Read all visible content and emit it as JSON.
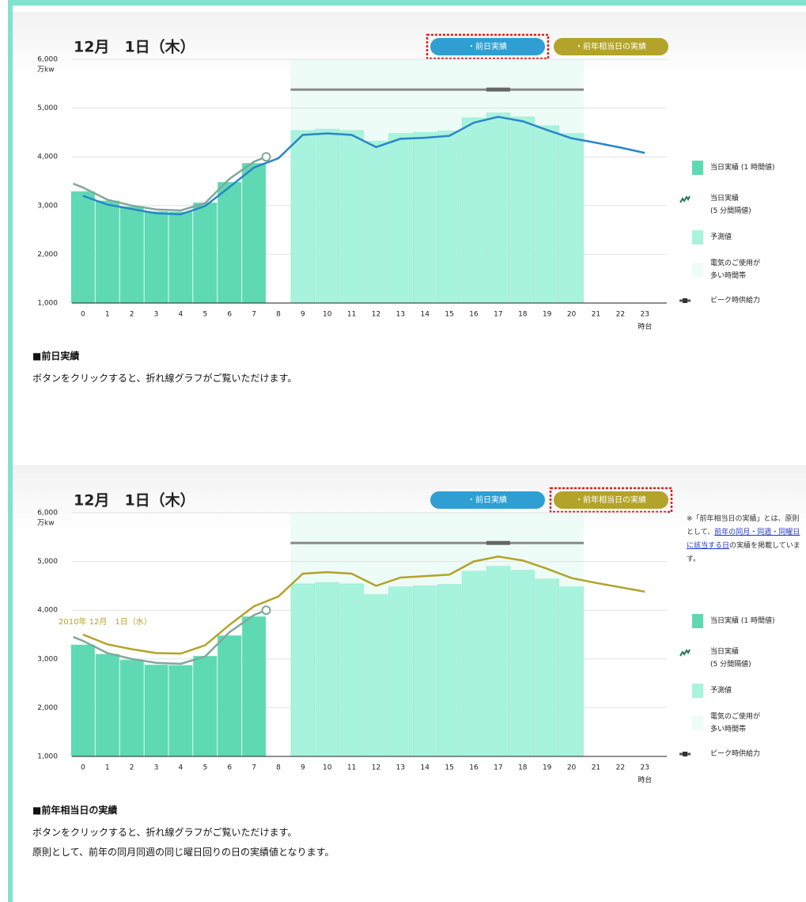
{
  "chart_data": [
    {
      "type": "bar",
      "date": "12月　1日（木）",
      "buttons": [
        "・前日実績",
        "・前年相当日の実績"
      ],
      "selected_button": 0,
      "y_unit": "万kw",
      "x_unit": "時台",
      "ylim": [
        1000,
        6000
      ],
      "yticks": [
        {
          "value": 1000,
          "label": "1,000"
        },
        {
          "value": 2000,
          "label": "2,000"
        },
        {
          "value": 3000,
          "label": "3,000"
        },
        {
          "value": 4000,
          "label": "4,000"
        },
        {
          "value": 5000,
          "label": "5,000"
        },
        {
          "value": 6000,
          "label": "6,000"
        }
      ],
      "xlim": [
        -0.45,
        23.9
      ],
      "xticks": [
        0,
        1,
        2,
        3,
        4,
        5,
        6,
        7,
        8,
        9,
        10,
        11,
        12,
        13,
        14,
        15,
        16,
        17,
        18,
        19,
        20,
        21,
        22,
        23
      ],
      "grid": true,
      "series": [
        {
          "name": "当日実績 (1 時間値)",
          "type": "bar",
          "color": "#5ed9b4",
          "x": [
            0,
            1,
            2,
            3,
            4,
            5,
            6,
            7
          ],
          "values": [
            3290,
            3100,
            2980,
            2880,
            2870,
            3060,
            3480,
            3870
          ]
        },
        {
          "name": "予測値",
          "type": "bar",
          "color": "#a8f3dd",
          "x": [
            9,
            10,
            11,
            12,
            13,
            14,
            15,
            16,
            17,
            18,
            19,
            20
          ],
          "values": [
            4540,
            4570,
            4540,
            4320,
            4480,
            4500,
            4530,
            4800,
            4900,
            4820,
            4640,
            4480
          ]
        },
        {
          "name": "当日実績\n(5 分間隔値)",
          "type": "line",
          "color": "#7fa89b",
          "end_marker": true,
          "x": [
            -0.4,
            0,
            1,
            2,
            3,
            4,
            5,
            6,
            7,
            7.5
          ],
          "values": [
            3450,
            3370,
            3120,
            3000,
            2920,
            2900,
            3050,
            3550,
            3900,
            4000
          ]
        },
        {
          "type": "line",
          "color": "#2a86c6",
          "x": [
            0,
            1,
            2,
            3,
            4,
            5,
            6,
            7,
            8,
            9,
            10,
            11,
            12,
            13,
            14,
            15,
            16,
            17,
            18,
            19,
            20,
            21,
            22,
            23
          ],
          "values": [
            3200,
            3020,
            2930,
            2840,
            2820,
            2990,
            3380,
            3780,
            3970,
            4450,
            4480,
            4450,
            4200,
            4370,
            4390,
            4430,
            4700,
            4820,
            4730,
            4550,
            4380,
            4290,
            4190,
            4080
          ]
        }
      ],
      "highlight": {
        "name": "電気のご使用が\n多い時間帯",
        "color": "#edfcf7",
        "x": [
          8.5,
          20.5
        ]
      },
      "peak": {
        "name": "ピーク時供給力",
        "color": "#8a8a8a",
        "value": 5380,
        "x": [
          8.5,
          20.5
        ],
        "marker_x": 17
      }
    },
    {
      "type": "bar",
      "date": "12月　1日（木）",
      "buttons": [
        "・前日実績",
        "・前年相当日の実績"
      ],
      "selected_button": 1,
      "y_unit": "万kw",
      "x_unit": "時台",
      "ylim": [
        1000,
        6000
      ],
      "yticks": [
        {
          "value": 1000,
          "label": "1,000"
        },
        {
          "value": 2000,
          "label": "2,000"
        },
        {
          "value": 3000,
          "label": "3,000"
        },
        {
          "value": 4000,
          "label": "4,000"
        },
        {
          "value": 5000,
          "label": "5,000"
        },
        {
          "value": 6000,
          "label": "6,000"
        }
      ],
      "xlim": [
        -0.45,
        23.9
      ],
      "xticks": [
        0,
        1,
        2,
        3,
        4,
        5,
        6,
        7,
        8,
        9,
        10,
        11,
        12,
        13,
        14,
        15,
        16,
        17,
        18,
        19,
        20,
        21,
        22,
        23
      ],
      "grid": true,
      "series": [
        {
          "name": "当日実績 (1 時間値)",
          "type": "bar",
          "color": "#5ed9b4",
          "x": [
            0,
            1,
            2,
            3,
            4,
            5,
            6,
            7
          ],
          "values": [
            3290,
            3100,
            2980,
            2880,
            2870,
            3060,
            3480,
            3870
          ]
        },
        {
          "name": "予測値",
          "type": "bar",
          "color": "#a8f3dd",
          "x": [
            9,
            10,
            11,
            12,
            13,
            14,
            15,
            16,
            17,
            18,
            19,
            20
          ],
          "values": [
            4540,
            4570,
            4540,
            4320,
            4480,
            4500,
            4530,
            4800,
            4900,
            4820,
            4640,
            4480
          ]
        },
        {
          "name": "当日実績\n(5 分間隔値)",
          "type": "line",
          "color": "#7fa89b",
          "end_marker": true,
          "x": [
            -0.4,
            0,
            1,
            2,
            3,
            4,
            5,
            6,
            7,
            7.5
          ],
          "values": [
            3450,
            3370,
            3120,
            3000,
            2920,
            2900,
            3050,
            3550,
            3900,
            4000
          ]
        },
        {
          "name": "2010年 12月　1日（水）",
          "type": "line",
          "color": "#b3a32a",
          "x": [
            0,
            1,
            2,
            3,
            4,
            5,
            6,
            7,
            8,
            9,
            10,
            11,
            12,
            13,
            14,
            15,
            16,
            17,
            18,
            19,
            20,
            21,
            22,
            23
          ],
          "values": [
            3500,
            3300,
            3200,
            3120,
            3110,
            3280,
            3700,
            4080,
            4280,
            4750,
            4780,
            4750,
            4500,
            4670,
            4700,
            4730,
            5000,
            5100,
            5020,
            4850,
            4660,
            4560,
            4470,
            4380
          ]
        }
      ],
      "highlight": {
        "name": "電気のご使用が\n多い時間帯",
        "color": "#edfcf7",
        "x": [
          8.5,
          20.5
        ]
      },
      "peak": {
        "name": "ピーク時供給力",
        "color": "#8a8a8a",
        "value": 5380,
        "x": [
          8.5,
          20.5
        ],
        "marker_x": 17
      },
      "note": [
        "※「前年相当日の実績」とは、原則として、",
        "前年の同月・同週・同曜日に該当する日",
        "の実績を掲載しています。"
      ]
    }
  ],
  "sections": [
    {
      "heading": "■前日実績",
      "lines": [
        "ボタンをクリックすると、折れ線グラフがご覧いただけます。"
      ]
    },
    {
      "heading": "■前年相当日の実績",
      "lines": [
        "ボタンをクリックすると、折れ線グラフがご覧いただけます。",
        "原則として、前年の同月同週の同じ曜日回りの日の実績値となります。"
      ]
    }
  ]
}
